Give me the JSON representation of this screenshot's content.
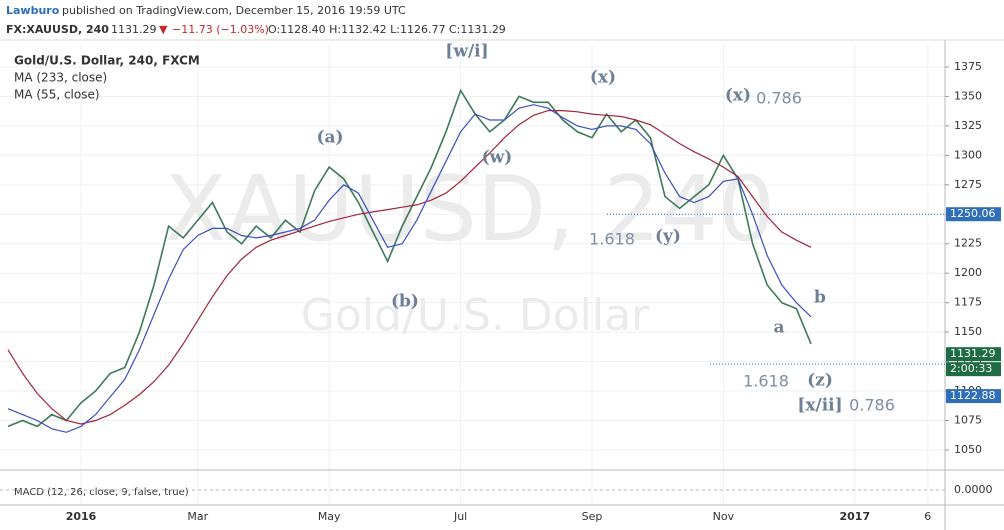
{
  "header": {
    "author": "Lawburo",
    "published": "published on TradingView.com, December 15, 2016 19:59 UTC",
    "symbol": "FX:XAUUSD, 240",
    "last": "1131.29",
    "arrow": "▼",
    "change": "−11.73 (−1.03%)",
    "ohlc": "O:1128.40 H:1132.42 L:1126.77 C:1131.29"
  },
  "chart_data": {
    "type": "line",
    "watermark": "XAUUSD, 240",
    "watermark_sub": "Gold/U.S. Dollar",
    "categories": [
      null,
      null,
      null,
      null,
      null,
      "2016",
      null,
      null,
      null,
      null,
      null,
      null,
      null,
      "Mar",
      null,
      null,
      null,
      null,
      null,
      null,
      null,
      null,
      "May",
      null,
      null,
      null,
      null,
      null,
      null,
      null,
      null,
      "Jul",
      null,
      null,
      null,
      null,
      null,
      null,
      null,
      null,
      "Sep",
      null,
      null,
      null,
      null,
      null,
      null,
      null,
      null,
      "Nov",
      null,
      null,
      null,
      null,
      null,
      null,
      null,
      null,
      "2017",
      null,
      null,
      null,
      null,
      "6"
    ],
    "series": [
      {
        "name": "Gold/U.S. Dollar, 240, FXCM",
        "color": "#3d7a5a",
        "values": [
          1070,
          1075,
          1070,
          1080,
          1075,
          1090,
          1100,
          1115,
          1120,
          1150,
          1190,
          1240,
          1230,
          1245,
          1260,
          1235,
          1225,
          1240,
          1230,
          1245,
          1235,
          1270,
          1290,
          1280,
          1260,
          1235,
          1210,
          1240,
          1265,
          1290,
          1320,
          1355,
          1335,
          1320,
          1330,
          1350,
          1345,
          1345,
          1330,
          1320,
          1315,
          1335,
          1320,
          1330,
          1315,
          1265,
          1255,
          1265,
          1275,
          1300,
          1280,
          1225,
          1190,
          1175,
          1170,
          1140,
          null,
          null,
          null,
          null,
          null,
          null,
          null,
          null
        ]
      },
      {
        "name": "MA (233, close)",
        "color": "#a3243b",
        "values": [
          1135,
          1115,
          1098,
          1085,
          1075,
          1072,
          1075,
          1080,
          1088,
          1097,
          1108,
          1122,
          1140,
          1160,
          1180,
          1198,
          1212,
          1222,
          1228,
          1232,
          1236,
          1240,
          1244,
          1247,
          1250,
          1252,
          1254,
          1256,
          1258,
          1262,
          1268,
          1278,
          1290,
          1302,
          1315,
          1326,
          1334,
          1338,
          1338,
          1337,
          1335,
          1334,
          1333,
          1330,
          1326,
          1318,
          1310,
          1303,
          1297,
          1290,
          1282,
          1265,
          1248,
          1235,
          1228,
          1222,
          null,
          null,
          null,
          null,
          null,
          null,
          null,
          null
        ]
      },
      {
        "name": "MA (55, close)",
        "color": "#3c4fc1",
        "values": [
          1085,
          1080,
          1075,
          1068,
          1065,
          1070,
          1080,
          1095,
          1110,
          1135,
          1165,
          1195,
          1220,
          1232,
          1238,
          1238,
          1232,
          1230,
          1232,
          1235,
          1238,
          1245,
          1262,
          1275,
          1268,
          1245,
          1222,
          1225,
          1245,
          1270,
          1295,
          1320,
          1335,
          1330,
          1330,
          1340,
          1343,
          1340,
          1332,
          1325,
          1322,
          1325,
          1325,
          1322,
          1310,
          1285,
          1265,
          1260,
          1265,
          1278,
          1280,
          1250,
          1215,
          1190,
          1175,
          1163,
          null,
          null,
          null,
          null,
          null,
          null,
          null,
          null
        ]
      }
    ],
    "ylim": [
      1033,
      1394.5
    ],
    "yticks": [
      1050,
      1075,
      1100,
      1125,
      1150,
      1175,
      1200,
      1225,
      1250,
      1275,
      1300,
      1325,
      1350,
      1375
    ],
    "grid": true,
    "price_labels": [
      1250.06,
      1131.29,
      1122.88
    ],
    "countdown": "2:00:33",
    "annotations": [
      "[w/i]",
      "(a)",
      "(b)",
      "(w)",
      "(x)",
      "(x)",
      "0.786",
      "(y)",
      "1.618",
      "b",
      "a",
      "1.618",
      "(z)",
      "[x/ii]",
      "0.786"
    ],
    "macd": {
      "label": "MACD (12, 26, close, 9, false, true)",
      "yticks": [
        {
          "value": 0,
          "label": "0.0000"
        }
      ]
    }
  }
}
